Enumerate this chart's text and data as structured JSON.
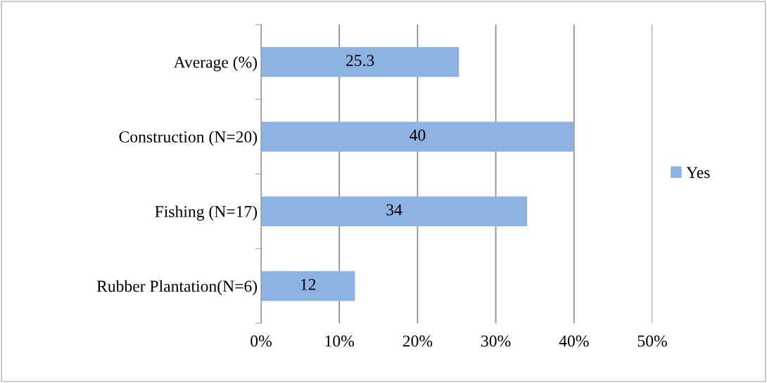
{
  "chart_data": {
    "type": "bar",
    "orientation": "horizontal",
    "categories": [
      "Average (%)",
      "Construction (N=20)",
      "Fishing (N=17)",
      "Rubber Plantation(N=6)"
    ],
    "series": [
      {
        "name": "Yes",
        "color": "#8db3e2",
        "values": [
          25.3,
          40,
          34,
          12
        ]
      }
    ],
    "xlim": [
      0,
      50
    ],
    "xticks": [
      {
        "value": 0,
        "label": "0%"
      },
      {
        "value": 10,
        "label": "10%"
      },
      {
        "value": 20,
        "label": "20%"
      },
      {
        "value": 30,
        "label": "30%"
      },
      {
        "value": 40,
        "label": "40%"
      },
      {
        "value": 50,
        "label": "50%"
      }
    ],
    "grid": "x",
    "legend": "right",
    "data_labels": true
  }
}
